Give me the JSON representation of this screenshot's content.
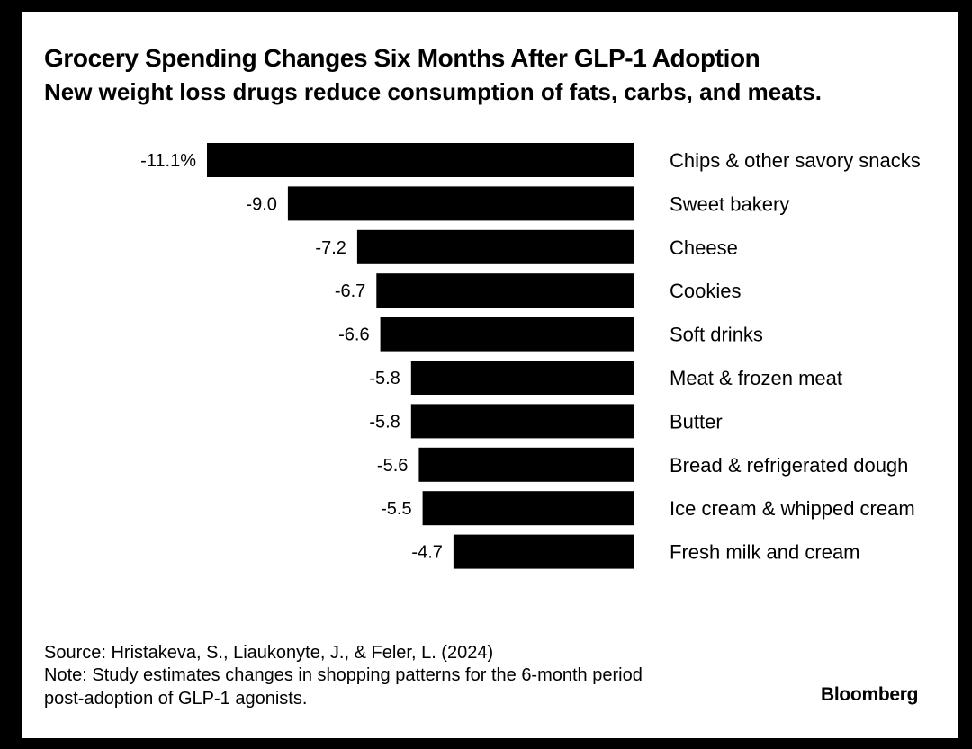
{
  "chart_data": {
    "type": "bar",
    "orientation": "horizontal",
    "title": "Grocery Spending Changes Six Months After GLP-1 Adoption",
    "subtitle": "New weight loss drugs reduce consumption of fats, carbs, and meats.",
    "categories": [
      "Chips & other savory snacks",
      "Sweet bakery",
      "Cheese",
      "Cookies",
      "Soft drinks",
      "Meat & frozen meat",
      "Butter",
      "Bread & refrigerated dough",
      "Ice cream & whipped cream",
      "Fresh milk and cream"
    ],
    "values": [
      -11.1,
      -9.0,
      -7.2,
      -6.7,
      -6.6,
      -5.8,
      -5.8,
      -5.6,
      -5.5,
      -4.7
    ],
    "value_labels": [
      "-11.1%",
      "-9.0",
      "-7.2",
      "-6.7",
      "-6.6",
      "-5.8",
      "-5.8",
      "-5.6",
      "-5.5",
      "-4.7"
    ],
    "xlim": [
      -11.1,
      0
    ],
    "unit": "%",
    "grid": false,
    "legend": "none",
    "bar_color": "#000000"
  },
  "footer": {
    "source": "Source: Hristakeva, S., Liaukonyte, J., & Feler, L. (2024)",
    "note_line1": "Note: Study estimates changes in shopping patterns for the 6-month period",
    "note_line2": "post-adoption of GLP-1 agonists.",
    "logo": "Bloomberg"
  }
}
